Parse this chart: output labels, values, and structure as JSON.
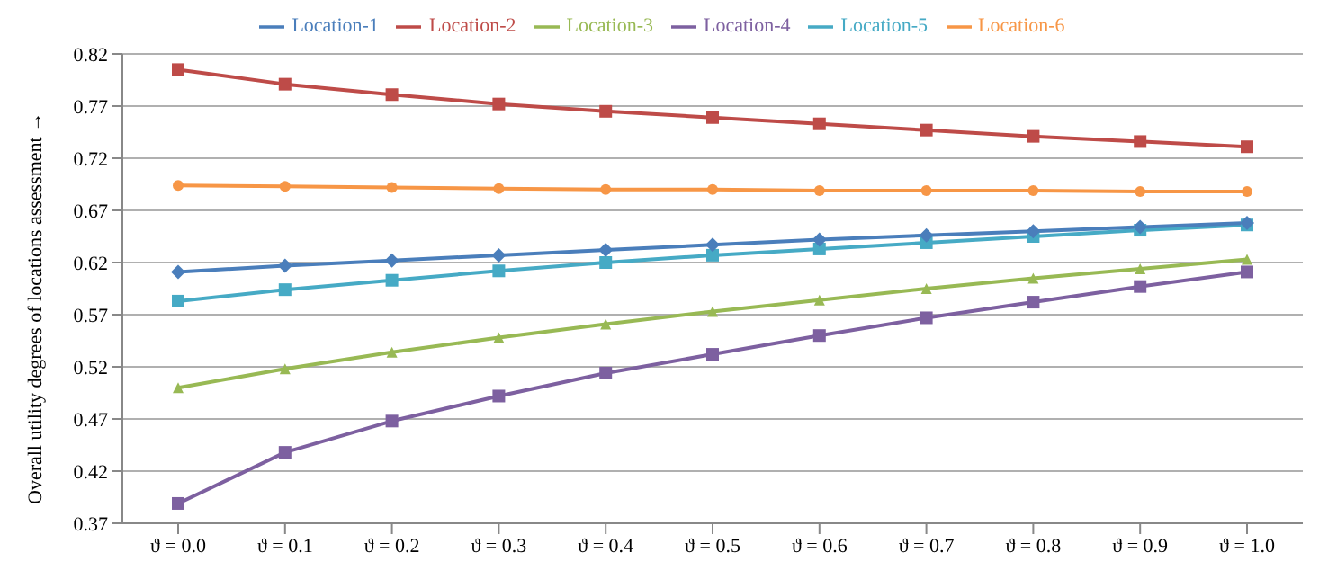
{
  "chart_data": {
    "type": "line",
    "ylabel": "Overall utility degrees of locations assessment →",
    "categories": [
      "ϑ = 0.0",
      "ϑ = 0.1",
      "ϑ = 0.2",
      "ϑ = 0.3",
      "ϑ = 0.4",
      "ϑ = 0.5",
      "ϑ = 0.6",
      "ϑ = 0.7",
      "ϑ = 0.8",
      "ϑ = 0.9",
      "ϑ = 1.0"
    ],
    "series": [
      {
        "name": "Location-1",
        "color": "#4a7ebb",
        "marker": "diamond",
        "values": [
          0.611,
          0.617,
          0.622,
          0.627,
          0.632,
          0.637,
          0.642,
          0.646,
          0.65,
          0.654,
          0.658
        ]
      },
      {
        "name": "Location-2",
        "color": "#be4b48",
        "marker": "square",
        "values": [
          0.805,
          0.791,
          0.781,
          0.772,
          0.765,
          0.759,
          0.753,
          0.747,
          0.741,
          0.736,
          0.731
        ]
      },
      {
        "name": "Location-3",
        "color": "#98b954",
        "marker": "triangle",
        "values": [
          0.5,
          0.518,
          0.534,
          0.548,
          0.561,
          0.573,
          0.584,
          0.595,
          0.605,
          0.614,
          0.623
        ]
      },
      {
        "name": "Location-4",
        "color": "#7d60a0",
        "marker": "square",
        "values": [
          0.389,
          0.438,
          0.468,
          0.492,
          0.514,
          0.532,
          0.55,
          0.567,
          0.582,
          0.597,
          0.611
        ]
      },
      {
        "name": "Location-5",
        "color": "#46aac5",
        "marker": "square",
        "values": [
          0.583,
          0.594,
          0.603,
          0.612,
          0.62,
          0.627,
          0.633,
          0.639,
          0.645,
          0.651,
          0.656
        ]
      },
      {
        "name": "Location-6",
        "color": "#f79646",
        "marker": "circle",
        "values": [
          0.694,
          0.693,
          0.692,
          0.691,
          0.69,
          0.69,
          0.689,
          0.689,
          0.689,
          0.688,
          0.688
        ]
      }
    ],
    "ylim": [
      0.37,
      0.82
    ],
    "yticks": [
      0.37,
      0.42,
      0.47,
      0.52,
      0.57,
      0.62,
      0.67,
      0.72,
      0.77,
      0.82
    ],
    "grid": "y",
    "legend": "top"
  }
}
